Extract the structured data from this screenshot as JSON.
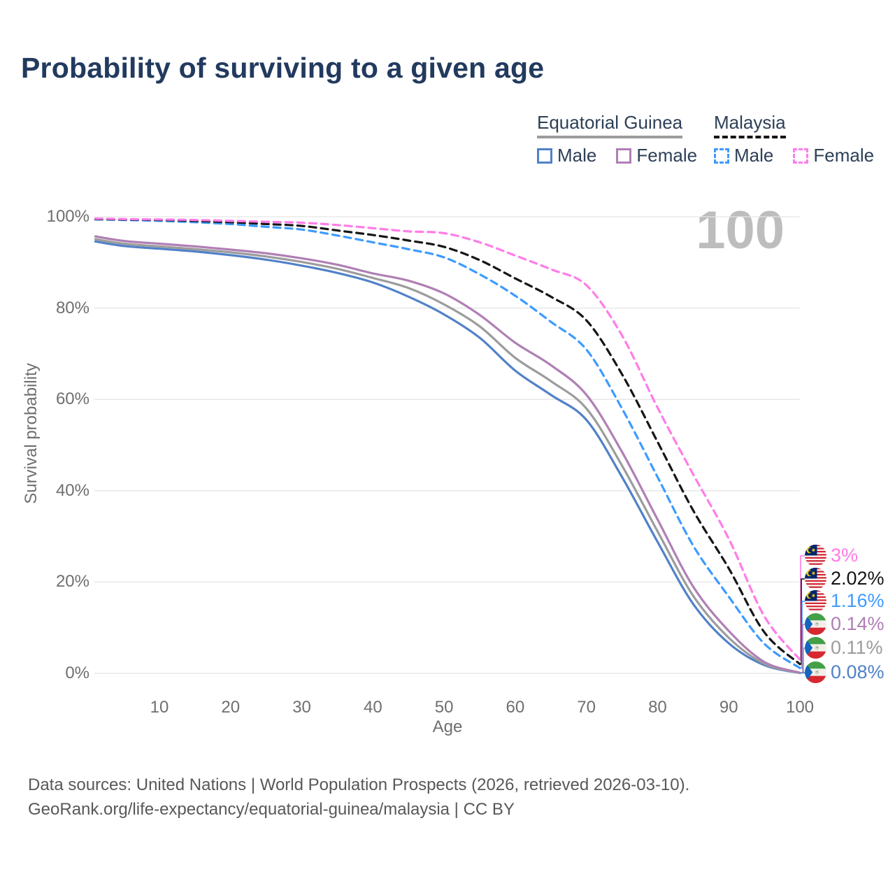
{
  "title": "Probability of surviving to a given age",
  "watermark": "100",
  "legend": {
    "groups": [
      {
        "title": "Equatorial Guinea",
        "line_style": "solid",
        "line_color": "#9c9c9c",
        "items": [
          {
            "label": "Male",
            "color": "#5181c8",
            "style": "solid"
          },
          {
            "label": "Female",
            "color": "#b07fb5",
            "style": "solid"
          }
        ]
      },
      {
        "title": "Malaysia",
        "line_style": "dashed",
        "line_color": "#161616",
        "items": [
          {
            "label": "Male",
            "color": "#3d9bff",
            "style": "dashed"
          },
          {
            "label": "Female",
            "color": "#ff7ce8",
            "style": "dashed"
          }
        ]
      }
    ]
  },
  "footer": {
    "line1": "Data sources: United Nations | World Population Prospects (2026, retrieved 2026-03-10).",
    "line2": "GeoRank.org/life-expectancy/equatorial-guinea/malaysia | CC BY"
  },
  "chart_data": {
    "type": "line",
    "title": "Probability of surviving to a given age",
    "xlabel": "Age",
    "ylabel": "Survival probability",
    "xlim": [
      1,
      100
    ],
    "ylim": [
      0,
      100
    ],
    "grid": "horizontal",
    "legend_position": "top-right",
    "x_ticks": [
      10,
      20,
      30,
      40,
      50,
      60,
      70,
      80,
      90,
      100
    ],
    "y_ticks": [
      {
        "value": 0,
        "label": "0%"
      },
      {
        "value": 20,
        "label": "20%"
      },
      {
        "value": 40,
        "label": "40%"
      },
      {
        "value": 60,
        "label": "60%"
      },
      {
        "value": 80,
        "label": "80%"
      },
      {
        "value": 100,
        "label": "100%"
      }
    ],
    "x": [
      1,
      5,
      10,
      15,
      20,
      25,
      30,
      35,
      40,
      45,
      50,
      55,
      60,
      65,
      70,
      75,
      80,
      85,
      90,
      95,
      100
    ],
    "series": [
      {
        "name": "Equatorial Guinea — Male",
        "country": "equatorial-guinea",
        "sex": "male",
        "style": "solid",
        "color": "#5181c8",
        "values": [
          94.6,
          93.6,
          93.0,
          92.4,
          91.6,
          90.6,
          89.3,
          87.7,
          85.6,
          82.5,
          78.6,
          73.5,
          66.3,
          61.0,
          55.5,
          43.0,
          28.8,
          15.2,
          6.6,
          1.8,
          0.08
        ]
      },
      {
        "name": "Equatorial Guinea — Both sexes",
        "country": "equatorial-guinea",
        "sex": "total",
        "style": "solid",
        "color": "#9c9c9c",
        "values": [
          95.1,
          94.1,
          93.5,
          92.9,
          92.2,
          91.3,
          90.1,
          88.6,
          86.6,
          84.4,
          80.8,
          76.0,
          69.1,
          64.0,
          58.0,
          45.5,
          31.1,
          17.0,
          7.8,
          2.1,
          0.11
        ]
      },
      {
        "name": "Equatorial Guinea — Female",
        "country": "equatorial-guinea",
        "sex": "female",
        "style": "solid",
        "color": "#b07fb5",
        "values": [
          95.7,
          94.7,
          94.1,
          93.5,
          92.8,
          92.0,
          90.9,
          89.5,
          87.6,
          86.0,
          83.2,
          78.5,
          72.4,
          67.5,
          61.0,
          48.5,
          33.7,
          19.0,
          9.3,
          2.5,
          0.14
        ]
      },
      {
        "name": "Malaysia — Male",
        "country": "malaysia",
        "sex": "male",
        "style": "dashed",
        "color": "#3d9bff",
        "values": [
          99.4,
          99.3,
          99.1,
          98.8,
          98.4,
          97.8,
          97.2,
          95.9,
          94.4,
          92.9,
          91.1,
          87.4,
          82.7,
          77.0,
          70.9,
          58.0,
          43.0,
          28.0,
          16.8,
          6.5,
          1.16
        ]
      },
      {
        "name": "Malaysia — Both sexes",
        "country": "malaysia",
        "sex": "total",
        "style": "dashed",
        "color": "#161616",
        "values": [
          99.5,
          99.4,
          99.3,
          99.1,
          98.8,
          98.4,
          98.0,
          97.0,
          96.0,
          94.8,
          93.4,
          90.5,
          86.5,
          82.5,
          77.3,
          65.5,
          50.7,
          35.7,
          23.0,
          9.0,
          2.02
        ]
      },
      {
        "name": "Malaysia — Female",
        "country": "malaysia",
        "sex": "female",
        "style": "dashed",
        "color": "#ff7ce8",
        "values": [
          99.6,
          99.5,
          99.4,
          99.3,
          99.1,
          98.9,
          98.7,
          98.2,
          97.5,
          96.8,
          96.4,
          94.4,
          91.5,
          88.5,
          85.0,
          74.0,
          58.2,
          43.6,
          29.5,
          12.5,
          3.0
        ]
      }
    ],
    "end_labels": [
      {
        "label": "3%",
        "value": 3.0,
        "color": "#ff7ce8",
        "flag": "malaysia"
      },
      {
        "label": "2.02%",
        "value": 2.02,
        "color": "#141414",
        "flag": "malaysia"
      },
      {
        "label": "1.16%",
        "value": 1.16,
        "color": "#3d9bff",
        "flag": "malaysia"
      },
      {
        "label": "0.14%",
        "value": 0.14,
        "color": "#b07fb5",
        "flag": "equatorial-guinea"
      },
      {
        "label": "0.11%",
        "value": 0.11,
        "color": "#9c9c9c",
        "flag": "equatorial-guinea"
      },
      {
        "label": "0.08%",
        "value": 0.08,
        "color": "#5181c8",
        "flag": "equatorial-guinea"
      }
    ]
  }
}
